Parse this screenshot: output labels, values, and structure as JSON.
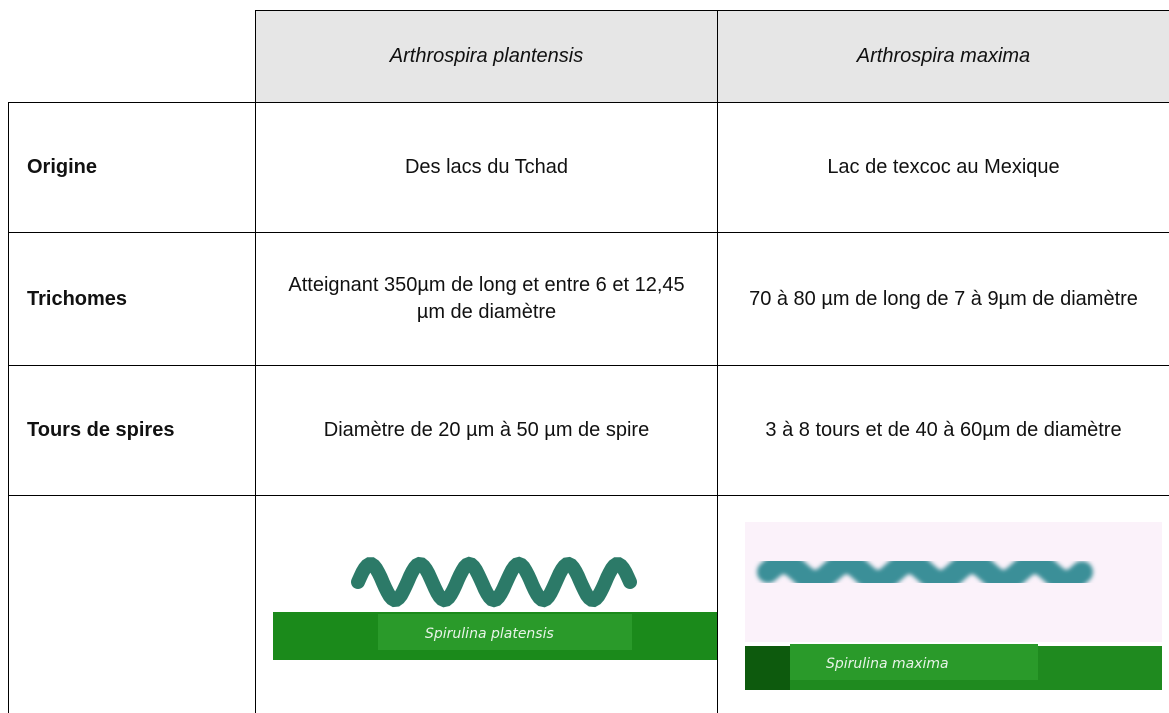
{
  "table": {
    "header": [
      "Arthrospira plantensis",
      "Arthrospira maxima"
    ],
    "rows": [
      [
        "Origine",
        "Des lacs du Tchad",
        "Lac de texcoc au Mexique"
      ],
      [
        "Trichomes",
        "Atteignant 350µm de long et entre 6 et 12,45 µm de diamètre",
        "70 à 80 µm de long de 7 à 9µm de diamètre"
      ],
      [
        "Tours de spires",
        "Diamètre de 20 µm à 50 µm de spire",
        "3 à 8 tours et de 40 à 60µm de diamètre"
      ]
    ],
    "image_captions": [
      "Spirulina platensis",
      "Spirulina maxima"
    ]
  }
}
